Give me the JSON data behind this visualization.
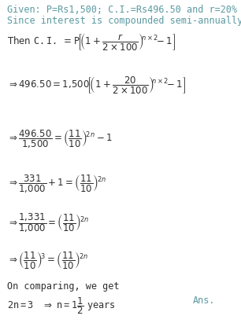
{
  "bg_color": "#ffffff",
  "text_color": "#2e2e2e",
  "teal_color": "#5b9aa0",
  "figsize": [
    3.06,
    4.11
  ],
  "dpi": 100,
  "given1": "Given: P=Rs1,500; C.I.=Rs496.50 and r=20%",
  "given2": "Since interest is compounded semi-annually",
  "fs_given": 8.5,
  "fs_math": 8.5,
  "fs_plain": 8.5
}
